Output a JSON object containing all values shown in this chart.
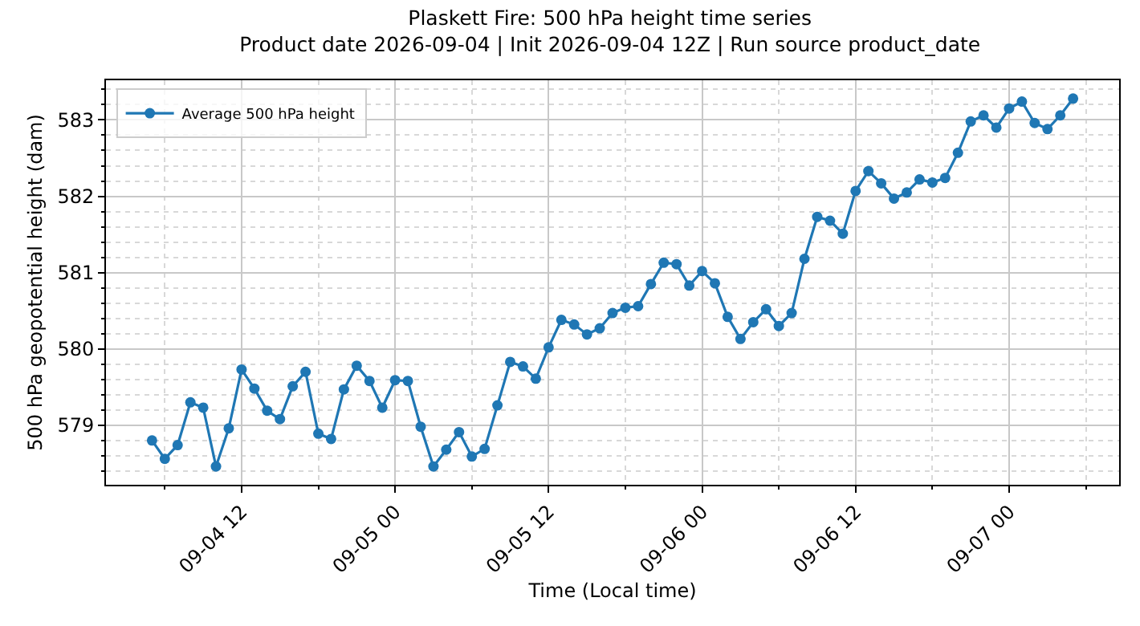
{
  "chart_data": {
    "type": "line",
    "title": "Plaskett Fire: 500 hPa height time series",
    "subtitle": "Product date 2026-09-04 | Init 2026-09-04 12Z | Run source product_date",
    "xlabel": "Time (Local time)",
    "ylabel": "500 hPa geopotential height (dam)",
    "x": [
      "2026-09-04T05:00",
      "2026-09-04T06:00",
      "2026-09-04T07:00",
      "2026-09-04T08:00",
      "2026-09-04T09:00",
      "2026-09-04T10:00",
      "2026-09-04T11:00",
      "2026-09-04T12:00",
      "2026-09-04T13:00",
      "2026-09-04T14:00",
      "2026-09-04T15:00",
      "2026-09-04T16:00",
      "2026-09-04T17:00",
      "2026-09-04T18:00",
      "2026-09-04T19:00",
      "2026-09-04T20:00",
      "2026-09-04T21:00",
      "2026-09-04T22:00",
      "2026-09-04T23:00",
      "2026-09-05T00:00",
      "2026-09-05T01:00",
      "2026-09-05T02:00",
      "2026-09-05T03:00",
      "2026-09-05T04:00",
      "2026-09-05T05:00",
      "2026-09-05T06:00",
      "2026-09-05T07:00",
      "2026-09-05T08:00",
      "2026-09-05T09:00",
      "2026-09-05T10:00",
      "2026-09-05T11:00",
      "2026-09-05T12:00",
      "2026-09-05T13:00",
      "2026-09-05T14:00",
      "2026-09-05T15:00",
      "2026-09-05T16:00",
      "2026-09-05T17:00",
      "2026-09-05T18:00",
      "2026-09-05T19:00",
      "2026-09-05T20:00",
      "2026-09-05T21:00",
      "2026-09-05T22:00",
      "2026-09-05T23:00",
      "2026-09-06T00:00",
      "2026-09-06T01:00",
      "2026-09-06T02:00",
      "2026-09-06T03:00",
      "2026-09-06T04:00",
      "2026-09-06T05:00",
      "2026-09-06T06:00",
      "2026-09-06T07:00",
      "2026-09-06T08:00",
      "2026-09-06T09:00",
      "2026-09-06T10:00",
      "2026-09-06T11:00",
      "2026-09-06T12:00",
      "2026-09-06T13:00",
      "2026-09-06T14:00",
      "2026-09-06T15:00",
      "2026-09-06T16:00",
      "2026-09-06T17:00",
      "2026-09-06T18:00",
      "2026-09-06T19:00",
      "2026-09-06T20:00",
      "2026-09-06T21:00",
      "2026-09-06T22:00",
      "2026-09-06T23:00",
      "2026-09-07T00:00",
      "2026-09-07T01:00",
      "2026-09-07T02:00",
      "2026-09-07T03:00",
      "2026-09-07T04:00",
      "2026-09-07T05:00"
    ],
    "series": [
      {
        "name": "Average 500 hPa height",
        "color": "#1f77b4",
        "values": [
          578.8,
          578.56,
          578.74,
          579.3,
          579.23,
          578.46,
          578.96,
          579.73,
          579.48,
          579.19,
          579.08,
          579.51,
          579.7,
          578.89,
          578.82,
          579.47,
          579.78,
          579.58,
          579.23,
          579.59,
          579.58,
          578.98,
          578.46,
          578.68,
          578.91,
          578.59,
          578.69,
          579.26,
          579.83,
          579.77,
          579.61,
          580.02,
          580.38,
          580.32,
          580.19,
          580.27,
          580.47,
          580.54,
          580.56,
          580.85,
          581.13,
          581.11,
          580.83,
          581.02,
          580.86,
          580.42,
          580.13,
          580.35,
          580.52,
          580.3,
          580.47,
          581.18,
          581.73,
          581.68,
          581.51,
          582.07,
          582.33,
          582.17,
          581.97,
          582.05,
          582.22,
          582.18,
          582.24,
          582.57,
          582.98,
          583.06,
          582.9,
          583.15,
          583.24,
          582.96,
          582.88,
          583.06,
          583.28
        ]
      }
    ],
    "xlim": [
      "2026-09-04T01:24",
      "2026-09-07T08:36"
    ],
    "xticks": [
      {
        "value": "2026-09-04T06:00",
        "label": null
      },
      {
        "value": "2026-09-04T12:00",
        "label": "09-04 12"
      },
      {
        "value": "2026-09-04T18:00",
        "label": null
      },
      {
        "value": "2026-09-05T00:00",
        "label": "09-05 00"
      },
      {
        "value": "2026-09-05T06:00",
        "label": null
      },
      {
        "value": "2026-09-05T12:00",
        "label": "09-05 12"
      },
      {
        "value": "2026-09-05T18:00",
        "label": null
      },
      {
        "value": "2026-09-06T00:00",
        "label": "09-06 00"
      },
      {
        "value": "2026-09-06T06:00",
        "label": null
      },
      {
        "value": "2026-09-06T12:00",
        "label": "09-06 12"
      },
      {
        "value": "2026-09-06T18:00",
        "label": null
      },
      {
        "value": "2026-09-07T00:00",
        "label": "09-07 00"
      },
      {
        "value": "2026-09-07T06:00",
        "label": null
      }
    ],
    "ylim": [
      578.22,
      583.52
    ],
    "yticks": [
      {
        "value": 578.4,
        "label": null
      },
      {
        "value": 578.6,
        "label": null
      },
      {
        "value": 578.8,
        "label": null
      },
      579,
      {
        "value": 579.2,
        "label": null
      },
      {
        "value": 579.4,
        "label": null
      },
      {
        "value": 579.6,
        "label": null
      },
      {
        "value": 579.8,
        "label": null
      },
      580,
      {
        "value": 580.2,
        "label": null
      },
      {
        "value": 580.4,
        "label": null
      },
      {
        "value": 580.6,
        "label": null
      },
      {
        "value": 580.8,
        "label": null
      },
      581,
      {
        "value": 581.2,
        "label": null
      },
      {
        "value": 581.4,
        "label": null
      },
      {
        "value": 581.6,
        "label": null
      },
      {
        "value": 581.8,
        "label": null
      },
      582,
      {
        "value": 582.2,
        "label": null
      },
      {
        "value": 582.4,
        "label": null
      },
      {
        "value": 582.6,
        "label": null
      },
      {
        "value": 582.8,
        "label": null
      },
      583,
      {
        "value": 583.2,
        "label": null
      },
      {
        "value": 583.4,
        "label": null
      }
    ],
    "grid": true,
    "legend": "top left",
    "marker": "circle",
    "line_style": "solid"
  }
}
